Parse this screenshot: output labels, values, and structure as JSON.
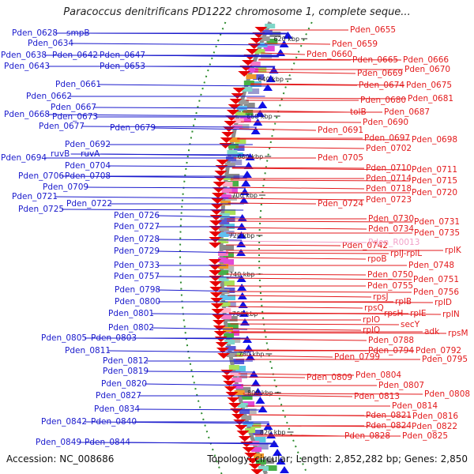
{
  "map": {
    "title": "Paracoccus denitrificans PD1222 chromosome 1, complete seque...",
    "footer": {
      "accession": "Accession: NC_008686",
      "topology": "Topology: circular; Length: 2,852,282 bp; Genes: 2,850"
    },
    "colors": {
      "left_labels": "#1a1acc",
      "right_labels": "#e31a1c",
      "rna_label": "#f2a0c8",
      "backbone": "#8c8c8c",
      "ticks": "#2e8b2e"
    },
    "ticks": [
      "620 kbp",
      "640 kbp",
      "660 kbp",
      "680 kbp",
      "700 kbp",
      "720 kbp",
      "740 kbp",
      "760 kbp",
      "780 kbp",
      "800 kbp",
      "820 kbp"
    ],
    "left_labels": [
      "Pden_0628",
      "smpB",
      "Pden_0634",
      "Pden_0638",
      "Pden_0642",
      "Pden_0647",
      "Pden_0643",
      "Pden_0653",
      "Pden_0661",
      "Pden_0662",
      "Pden_0667",
      "Pden_0668",
      "Pden_0673",
      "Pden_0677",
      "Pden_0679",
      "Pden_0692",
      "ruvB",
      "ruvA",
      "Pden_0694",
      "Pden_0704",
      "Pden_0706",
      "Pden_0708",
      "Pden_0709",
      "Pden_0721",
      "Pden_0722",
      "Pden_0725",
      "Pden_0726",
      "Pden_0727",
      "Pden_0728",
      "Pden_0729",
      "Pden_0733",
      "Pden_0757",
      "Pden_0798",
      "Pden_0800",
      "Pden_0801",
      "Pden_0802",
      "Pden_0805",
      "Pden_0803",
      "Pden_0811",
      "Pden_0812",
      "Pden_0819",
      "Pden_0820",
      "Pden_0827",
      "Pden_0834",
      "Pden_0842",
      "Pden_0840",
      "Pden_0849",
      "Pden_0844"
    ],
    "right_labels": [
      "Pden_0655",
      "Pden_0659",
      "Pden_0660",
      "Pden_0665",
      "Pden_0666",
      "Pden_0669",
      "Pden_0670",
      "Pden_0674",
      "Pden_0675",
      "Pden_0680",
      "Pden_0681",
      "tolB",
      "Pden_0687",
      "Pden_0690",
      "Pden_0691",
      "Pden_0697",
      "Pden_0698",
      "Pden_0702",
      "Pden_0705",
      "Pden_0710",
      "Pden_0711",
      "Pden_0714",
      "Pden_0715",
      "Pden_0718",
      "Pden_0720",
      "Pden_0724",
      "Pden_0723",
      "Pden_0730",
      "Pden_0731",
      "Pden_0734",
      "Pden_0735",
      "Pden_0742",
      "Pden_R0013",
      "rplK",
      "rplJ-rplL",
      "rpoB",
      "Pden_0748",
      "Pden_0750",
      "Pden_0751",
      "Pden_0755",
      "Pden_0756",
      "rpsJ",
      "rplB",
      "rplD",
      "rpsQ",
      "rpsH",
      "rplE",
      "rplN",
      "rplO",
      "secY",
      "rplQ",
      "adk",
      "rpsM",
      "Pden_0788",
      "Pden_0794",
      "Pden_0792",
      "Pden_0799",
      "Pden_0795",
      "Pden_0809",
      "Pden_0804",
      "Pden_0807",
      "Pden_0808",
      "Pden_0813",
      "Pden_0814",
      "Pden_0821",
      "Pden_0816",
      "Pden_0824",
      "Pden_0822",
      "Pden_0828",
      "Pden_0825"
    ]
  }
}
